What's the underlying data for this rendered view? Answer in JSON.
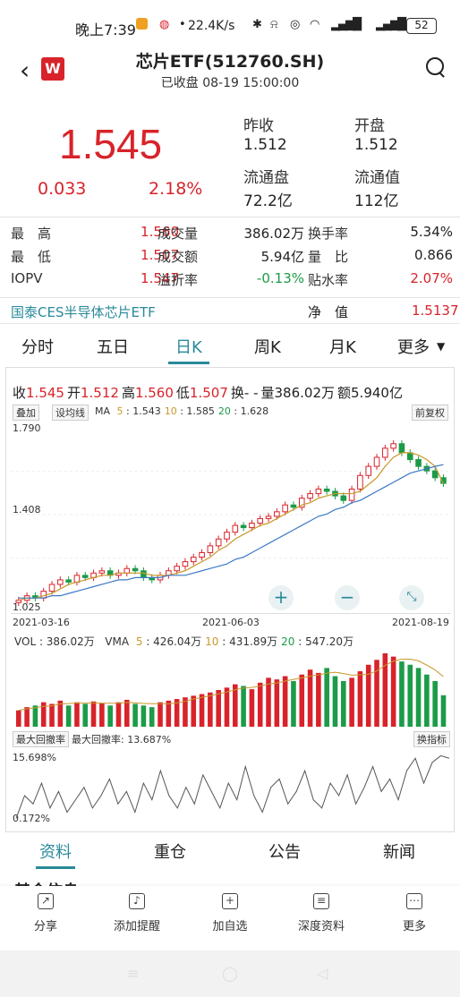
{
  "status_bar": {
    "time": "晚上7:39",
    "net_speed": "22.4K/s",
    "battery": "52"
  },
  "header": {
    "back_icon": "chevron-left-icon",
    "logo_text": "W",
    "title": "芯片ETF(512760.SH)",
    "subtitle": "已收盘 08-19 15:00:00"
  },
  "quote": {
    "price": "1.545",
    "change": "0.033",
    "change_pct": "2.18%",
    "prev_close_label": "昨收",
    "prev_close": "1.512",
    "open_label": "开盘",
    "open": "1.512",
    "float_shares_label": "流通盘",
    "float_shares": "72.2亿",
    "float_value_label": "流通值",
    "float_value": "112亿",
    "up_color": "#d8232a",
    "down_color": "#1c9b48"
  },
  "stats": [
    [
      {
        "l": "最　高",
        "v": "1.560",
        "c": "red"
      },
      {
        "l": "成交量",
        "v": "386.02万",
        "c": ""
      },
      {
        "l": "换手率",
        "v": "5.34%",
        "c": ""
      }
    ],
    [
      {
        "l": "最　低",
        "v": "1.507",
        "c": "red"
      },
      {
        "l": "成交额",
        "v": "5.94亿",
        "c": ""
      },
      {
        "l": "量　比",
        "v": "0.866",
        "c": ""
      }
    ],
    [
      {
        "l": "IOPV",
        "v": "1.547",
        "c": "red"
      },
      {
        "l": "溢折率",
        "v": "-0.13%",
        "c": "green"
      },
      {
        "l": "贴水率",
        "v": "2.07%",
        "c": "red"
      }
    ]
  ],
  "index_row": {
    "name": "国泰CES半导体芯片ETF",
    "nav_label": "净　值",
    "nav": "1.5137"
  },
  "periods": [
    "分时",
    "五日",
    "日K",
    "周K",
    "月K",
    "更多"
  ],
  "active_period": "日K",
  "kline": {
    "ohlc_text": [
      {
        "l": "收",
        "v": "1.545"
      },
      {
        "l": "开",
        "v": "1.512"
      },
      {
        "l": "高",
        "v": "1.560"
      },
      {
        "l": "低",
        "v": "1.507"
      },
      {
        "l": "换",
        "v": "- -"
      },
      {
        "l": "量",
        "v": "386.02万"
      },
      {
        "l": "额",
        "v": "5.940亿"
      }
    ],
    "tag_overlay": "叠加",
    "tag_ma": "设均线",
    "ma_label": "MA",
    "ma": [
      {
        "n": "5",
        "v": "1.543",
        "color": "#c9982a"
      },
      {
        "n": "10",
        "v": "1.585",
        "color": "#c9982a"
      },
      {
        "n": "20",
        "v": "1.628",
        "color": "#1c9b48"
      }
    ],
    "adjust": "前复权",
    "y_high": "1.790",
    "y_mid": "1.408",
    "y_low": "1.025",
    "dates": [
      "2021-03-16",
      "2021-06-03",
      "2021-08-19"
    ],
    "zoom_in": "+",
    "zoom_out": "−",
    "vol_label": "VOL : 386.02万",
    "vma_label": "VMA",
    "vma": [
      {
        "n": "5",
        "v": "426.04万",
        "color": "#c9982a"
      },
      {
        "n": "10",
        "v": "431.89万",
        "color": "#c9982a"
      },
      {
        "n": "20",
        "v": "547.20万",
        "color": "#1c9b48"
      }
    ],
    "dd_tag": "最大回撤率",
    "dd_text": "最大回撤率: 13.687%",
    "switch_tag": "换指标",
    "dd_high": "15.698%",
    "dd_low": "0.172%"
  },
  "info_tabs": [
    "资料",
    "重仓",
    "公告",
    "新闻"
  ],
  "active_info_tab": "资料",
  "section_peek": "基金信息",
  "toolbar": [
    {
      "label": "分享",
      "icon": "share-icon",
      "glyph": "↗"
    },
    {
      "label": "添加提醒",
      "icon": "bell-icon",
      "glyph": "♪"
    },
    {
      "label": "加自选",
      "icon": "plus-square-icon",
      "glyph": "+"
    },
    {
      "label": "深度资料",
      "icon": "book-icon",
      "glyph": "≡"
    },
    {
      "label": "更多",
      "icon": "more-icon",
      "glyph": "⋯"
    }
  ],
  "chart_data": [
    {
      "type": "candlestick",
      "title": "",
      "x_labels": [
        "2021-03-16",
        "2021-06-03",
        "2021-08-19"
      ],
      "ylim": [
        1.025,
        1.79
      ],
      "y_ticks": [
        "1.790",
        "1.408",
        "1.025"
      ],
      "close": [
        1.03,
        1.05,
        1.04,
        1.07,
        1.1,
        1.12,
        1.11,
        1.14,
        1.13,
        1.15,
        1.16,
        1.14,
        1.15,
        1.17,
        1.16,
        1.13,
        1.12,
        1.14,
        1.16,
        1.18,
        1.2,
        1.22,
        1.24,
        1.27,
        1.3,
        1.33,
        1.36,
        1.35,
        1.37,
        1.39,
        1.4,
        1.42,
        1.45,
        1.44,
        1.48,
        1.5,
        1.52,
        1.51,
        1.49,
        1.47,
        1.52,
        1.58,
        1.62,
        1.66,
        1.7,
        1.72,
        1.68,
        1.65,
        1.62,
        1.6,
        1.57,
        1.545
      ],
      "ma5": [
        1.03,
        1.04,
        1.04,
        1.05,
        1.06,
        1.08,
        1.1,
        1.11,
        1.12,
        1.13,
        1.14,
        1.14,
        1.15,
        1.15,
        1.15,
        1.15,
        1.14,
        1.14,
        1.14,
        1.15,
        1.16,
        1.18,
        1.2,
        1.22,
        1.25,
        1.27,
        1.3,
        1.32,
        1.34,
        1.36,
        1.37,
        1.39,
        1.41,
        1.43,
        1.45,
        1.46,
        1.48,
        1.49,
        1.5,
        1.5,
        1.5,
        1.51,
        1.54,
        1.57,
        1.62,
        1.66,
        1.68,
        1.68,
        1.67,
        1.65,
        1.62,
        1.543
      ],
      "ma20": [
        1.04,
        1.04,
        1.04,
        1.04,
        1.05,
        1.05,
        1.06,
        1.07,
        1.08,
        1.09,
        1.1,
        1.11,
        1.12,
        1.12,
        1.13,
        1.13,
        1.13,
        1.13,
        1.14,
        1.14,
        1.14,
        1.15,
        1.16,
        1.17,
        1.18,
        1.19,
        1.21,
        1.22,
        1.24,
        1.26,
        1.28,
        1.3,
        1.32,
        1.34,
        1.36,
        1.38,
        1.4,
        1.41,
        1.43,
        1.44,
        1.46,
        1.47,
        1.49,
        1.51,
        1.53,
        1.55,
        1.57,
        1.59,
        1.6,
        1.61,
        1.62,
        1.628
      ]
    },
    {
      "type": "bar",
      "title": "VOL",
      "values": [
        200,
        240,
        260,
        300,
        280,
        320,
        260,
        300,
        280,
        310,
        290,
        260,
        300,
        330,
        280,
        260,
        240,
        300,
        320,
        340,
        360,
        380,
        400,
        420,
        450,
        480,
        520,
        500,
        460,
        540,
        600,
        580,
        620,
        560,
        640,
        700,
        660,
        720,
        620,
        560,
        600,
        680,
        760,
        820,
        900,
        860,
        800,
        760,
        720,
        640,
        560,
        386
      ],
      "vma5_last": "426.04万",
      "vma10_last": "431.89万",
      "vma20_last": "547.20万"
    },
    {
      "type": "line",
      "title": "最大回撤率",
      "ylim": [
        0.172,
        15.698
      ],
      "y_ticks": [
        "15.698%",
        "0.172%"
      ],
      "values": [
        0.5,
        6,
        4,
        9,
        3,
        7,
        2,
        5,
        8,
        3,
        6,
        10,
        4,
        7,
        2,
        9,
        5,
        12,
        6,
        3,
        8,
        4,
        11,
        7,
        3,
        9,
        5,
        13,
        6,
        2,
        8,
        10,
        4,
        7,
        12,
        5,
        3,
        9,
        6,
        11,
        4,
        8,
        13,
        7,
        10,
        5,
        12,
        15,
        9,
        14,
        15.6,
        15.0
      ]
    }
  ]
}
